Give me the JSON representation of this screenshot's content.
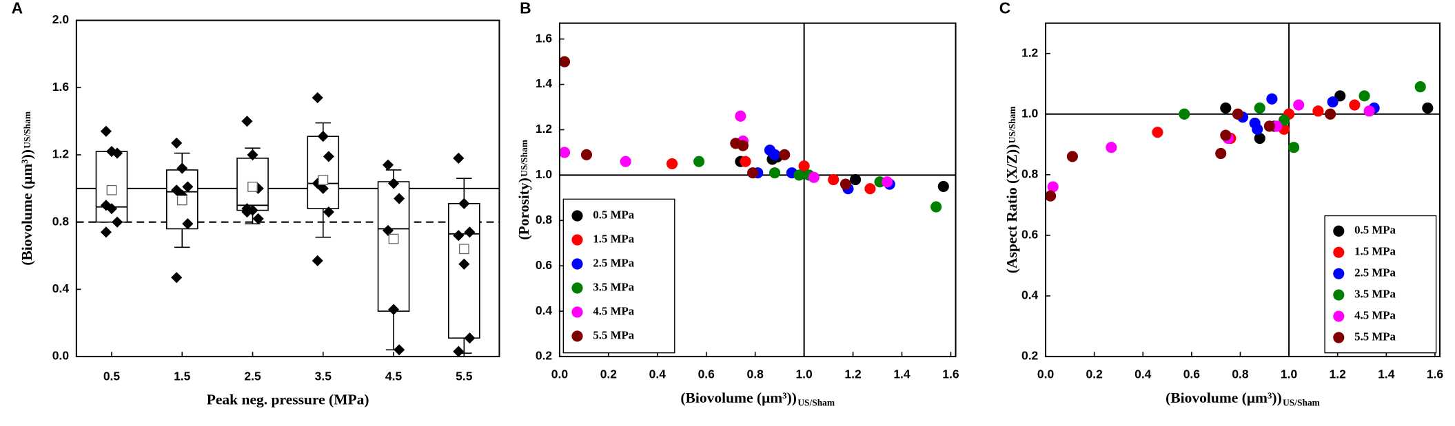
{
  "chart_data": [
    {
      "type": "box",
      "panel_label": "A",
      "xlabel": "Peak neg. pressure (MPa)",
      "ylabel": "(Biovolume (μm³))",
      "ylabel_sub": "US/Sham",
      "categories": [
        "0.5",
        "1.5",
        "2.5",
        "3.5",
        "4.5",
        "5.5"
      ],
      "ylim": [
        0,
        2.0
      ],
      "yticks": [
        {
          "value": 0,
          "label": "0.0"
        },
        0.4,
        0.8,
        1.2,
        1.6,
        {
          "value": 2.0,
          "label": "2.0"
        }
      ],
      "hlines": [
        {
          "value": 1.0,
          "style": "solid"
        },
        {
          "value": 0.8,
          "style": "dashed"
        }
      ],
      "boxes": [
        {
          "q1": 0.8,
          "median": 0.89,
          "q3": 1.22,
          "whisker_low": 0.8,
          "whisker_high": 1.22,
          "mean": 0.99,
          "points": [
            1.34,
            1.22,
            1.21,
            0.9,
            0.88,
            0.8,
            0.74
          ]
        },
        {
          "q1": 0.76,
          "median": 0.98,
          "q3": 1.11,
          "whisker_low": 0.65,
          "whisker_high": 1.21,
          "mean": 0.93,
          "points": [
            1.27,
            1.12,
            1.01,
            0.99,
            0.96,
            0.79,
            0.47
          ]
        },
        {
          "q1": 0.87,
          "median": 0.9,
          "q3": 1.18,
          "whisker_low": 0.79,
          "whisker_high": 1.24,
          "mean": 1.01,
          "points": [
            1.4,
            1.2,
            1.0,
            0.88,
            0.87,
            0.82,
            0.86
          ]
        },
        {
          "q1": 0.88,
          "median": 1.03,
          "q3": 1.31,
          "whisker_low": 0.71,
          "whisker_high": 1.39,
          "mean": 1.05,
          "points": [
            1.54,
            1.31,
            1.19,
            1.03,
            1.0,
            0.86,
            0.57
          ]
        },
        {
          "q1": 0.27,
          "median": 0.76,
          "q3": 1.04,
          "whisker_low": 0.04,
          "whisker_high": 1.11,
          "mean": 0.7,
          "points": [
            1.14,
            1.03,
            0.94,
            0.75,
            0.28,
            0.04
          ]
        },
        {
          "q1": 0.11,
          "median": 0.73,
          "q3": 0.91,
          "whisker_low": 0.02,
          "whisker_high": 1.06,
          "mean": 0.64,
          "points": [
            1.18,
            0.91,
            0.74,
            0.72,
            0.55,
            0.11,
            0.03
          ]
        }
      ]
    },
    {
      "type": "scatter",
      "panel_label": "B",
      "xlabel": "(Biovolume (μm³))",
      "xlabel_sub": "US/Sham",
      "ylabel": "(Porosity)",
      "ylabel_sub": "US/Sham",
      "xlim": [
        0,
        1.62
      ],
      "ylim": [
        0.2,
        1.67
      ],
      "xticks": [
        {
          "value": 0,
          "label": "0.0"
        },
        0.2,
        0.4,
        0.6,
        0.8,
        {
          "value": 1.0,
          "label": "1.0"
        },
        1.2,
        1.4,
        1.6
      ],
      "yticks": [
        0.2,
        0.4,
        0.6,
        0.8,
        {
          "value": 1.0,
          "label": "1.0"
        },
        1.2,
        1.4,
        1.6
      ],
      "hlines": [
        {
          "value": 1.0,
          "style": "solid"
        }
      ],
      "vlines": [
        {
          "value": 1.0,
          "style": "solid"
        }
      ],
      "legend": "lower left",
      "series": [
        {
          "name": "0.5 MPa",
          "color": "#000000",
          "x": [
            0.74,
            0.89,
            1.21,
            1.57,
            0.87
          ],
          "y": [
            1.06,
            1.08,
            0.98,
            0.95,
            1.07
          ]
        },
        {
          "name": "1.5 MPa",
          "color": "#ff0000",
          "x": [
            0.46,
            0.76,
            1.0,
            1.12,
            1.27
          ],
          "y": [
            1.05,
            1.06,
            1.04,
            0.98,
            0.94
          ]
        },
        {
          "name": "2.5 MPa",
          "color": "#0000ff",
          "x": [
            0.81,
            0.86,
            0.95,
            1.18,
            1.35,
            0.88
          ],
          "y": [
            1.01,
            1.11,
            1.01,
            0.94,
            0.96,
            1.09
          ]
        },
        {
          "name": "3.5 MPa",
          "color": "#008000",
          "x": [
            0.57,
            0.88,
            0.98,
            1.02,
            1.31,
            1.54
          ],
          "y": [
            1.06,
            1.01,
            1.0,
            1.0,
            0.97,
            0.86
          ]
        },
        {
          "name": "4.5 MPa",
          "color": "#ff00ff",
          "x": [
            0.02,
            0.27,
            0.74,
            0.75,
            1.04,
            1.34
          ],
          "y": [
            1.1,
            1.06,
            1.26,
            1.15,
            0.99,
            0.97
          ]
        },
        {
          "name": "5.5 MPa",
          "color": "#800000",
          "x": [
            0.02,
            0.11,
            0.72,
            0.75,
            0.79,
            0.92,
            1.17
          ],
          "y": [
            1.5,
            1.09,
            1.14,
            1.13,
            1.01,
            1.09,
            0.96
          ]
        }
      ]
    },
    {
      "type": "scatter",
      "panel_label": "C",
      "xlabel": "(Biovolume (μm³))",
      "xlabel_sub": "US/Sham",
      "ylabel": "(Aspect Ratio (X/Z))",
      "ylabel_sub": "US/Sham",
      "xlim": [
        0,
        1.62
      ],
      "ylim": [
        0.2,
        1.3
      ],
      "xticks": [
        {
          "value": 0,
          "label": "0.0"
        },
        0.2,
        0.4,
        0.6,
        0.8,
        {
          "value": 1.0,
          "label": "1.0"
        },
        1.2,
        1.4,
        1.6
      ],
      "yticks": [
        0.2,
        0.4,
        0.6,
        0.8,
        {
          "value": 1.0,
          "label": "1.0"
        },
        1.2
      ],
      "hlines": [
        {
          "value": 1.0,
          "style": "solid"
        }
      ],
      "vlines": [
        {
          "value": 1.0,
          "style": "solid"
        }
      ],
      "legend": "lower right",
      "series": [
        {
          "name": "0.5 MPa",
          "color": "#000000",
          "x": [
            0.74,
            0.88,
            0.94,
            1.21,
            1.57
          ],
          "y": [
            1.02,
            0.92,
            0.96,
            1.06,
            1.02
          ]
        },
        {
          "name": "1.5 MPa",
          "color": "#ff0000",
          "x": [
            0.46,
            0.76,
            0.98,
            1.0,
            1.12,
            1.27
          ],
          "y": [
            0.94,
            0.92,
            0.95,
            1.0,
            1.01,
            1.03
          ]
        },
        {
          "name": "2.5 MPa",
          "color": "#0000ff",
          "x": [
            0.81,
            0.86,
            0.93,
            0.87,
            1.18,
            1.35
          ],
          "y": [
            0.99,
            0.97,
            1.05,
            0.95,
            1.04,
            1.02
          ]
        },
        {
          "name": "3.5 MPa",
          "color": "#008000",
          "x": [
            0.57,
            0.88,
            0.98,
            1.02,
            1.31,
            1.54
          ],
          "y": [
            1.0,
            1.02,
            0.98,
            0.89,
            1.06,
            1.09
          ]
        },
        {
          "name": "4.5 MPa",
          "color": "#ff00ff",
          "x": [
            0.03,
            0.27,
            0.75,
            1.04,
            1.33,
            0.95
          ],
          "y": [
            0.76,
            0.89,
            0.92,
            1.03,
            1.01,
            0.96
          ]
        },
        {
          "name": "5.5 MPa",
          "color": "#800000",
          "x": [
            0.02,
            0.11,
            0.72,
            0.74,
            0.79,
            0.92,
            1.17
          ],
          "y": [
            0.73,
            0.86,
            0.87,
            0.93,
            1.0,
            0.96,
            1.0
          ]
        }
      ]
    }
  ]
}
